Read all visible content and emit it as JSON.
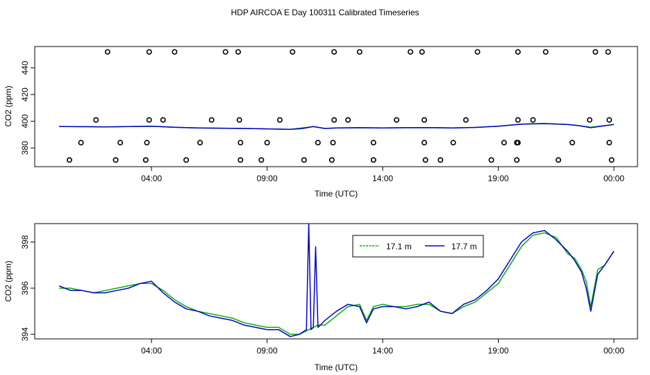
{
  "title": "HDP AIRCOA E  Day 100311  Calibrated Timeseries",
  "colors": {
    "green": "#00b000",
    "blue": "#0000cc",
    "black": "#000000"
  },
  "chart_data": [
    {
      "type": "scatter",
      "xlabel": "Time (UTC)",
      "ylabel": "CO2 (ppm)",
      "x_units": "hours since 00:00 UTC (axis runs ~00:00 to 00:00 next day)",
      "xlim": [
        0,
        24
      ],
      "ylim": [
        366,
        456
      ],
      "x_tick_labels": [
        "04:00",
        "09:00",
        "14:00",
        "19:00",
        "00:00"
      ],
      "x_tick_values": [
        4,
        9,
        14,
        19,
        24
      ],
      "y_tick_values": [
        380,
        400,
        420,
        440
      ],
      "y_tick_labels": [
        "380",
        "400",
        "420",
        "440"
      ],
      "points": {
        "x": [
          2.1,
          3.9,
          5.0,
          7.2,
          7.75,
          10.1,
          11.9,
          13.0,
          15.2,
          15.7,
          18.1,
          19.85,
          21.05,
          23.2,
          23.75,
          1.6,
          3.9,
          4.5,
          6.6,
          7.8,
          9.55,
          11.9,
          12.5,
          14.6,
          15.8,
          17.6,
          19.85,
          20.5,
          22.95,
          23.8,
          0.95,
          2.65,
          3.8,
          6.1,
          7.85,
          9.0,
          11.2,
          11.85,
          13.6,
          15.8,
          17.05,
          19.25,
          19.85,
          19.8,
          22.2,
          23.8,
          0.45,
          2.45,
          3.75,
          5.5,
          7.85,
          8.75,
          10.6,
          11.8,
          13.6,
          15.85,
          16.5,
          18.7,
          19.8,
          21.6,
          23.9
        ],
        "y": [
          452,
          452,
          452,
          452,
          452,
          452,
          452,
          452,
          452,
          452,
          452,
          452,
          452,
          452,
          452,
          401,
          401,
          401,
          401,
          401,
          401,
          401,
          401,
          401,
          401,
          401,
          401,
          401,
          401,
          401,
          384,
          384,
          384,
          384,
          384,
          384,
          384,
          384,
          384,
          384,
          384,
          384,
          384,
          384,
          384,
          384,
          371,
          371,
          371,
          371,
          371,
          371,
          371,
          371,
          371,
          371,
          371,
          371,
          371,
          371,
          371
        ]
      },
      "series": [
        {
          "name": "17.1 m",
          "x": [
            0,
            1,
            2,
            3,
            4,
            5,
            6,
            7,
            8,
            9,
            10,
            10.5,
            11,
            11.5,
            12,
            13,
            14,
            15,
            16,
            17,
            18,
            19,
            20,
            21,
            22,
            22.5,
            23,
            24
          ],
          "values": [
            396,
            396,
            395.8,
            396,
            396.2,
            395.5,
            395,
            394.8,
            394.6,
            394.3,
            394,
            395,
            396,
            394.6,
            395,
            395.2,
            395,
            395.2,
            395.3,
            395,
            395.4,
            396.3,
            397.8,
            398.2,
            397.6,
            396.7,
            395.5,
            397.6
          ]
        },
        {
          "name": "17.7 m",
          "x": [
            0,
            1,
            2,
            3,
            4,
            5,
            6,
            7,
            8,
            9,
            10,
            10.5,
            11,
            11.5,
            12,
            13,
            14,
            15,
            16,
            17,
            18,
            19,
            20,
            21,
            22,
            22.5,
            23,
            24
          ],
          "values": [
            396.1,
            395.9,
            395.8,
            396,
            396.3,
            395.5,
            395,
            394.8,
            394.6,
            394.3,
            394,
            394.5,
            396,
            394.6,
            395,
            395.2,
            395,
            395.2,
            395.3,
            395,
            395.4,
            396.3,
            397.9,
            398.3,
            397.6,
            396.7,
            395.2,
            397.6
          ]
        }
      ]
    },
    {
      "type": "line",
      "xlabel": "Time (UTC)",
      "ylabel": "CO2 (ppm)",
      "x_units": "hours since 00:00 UTC (axis runs ~00:00 to 00:00 next day)",
      "xlim": [
        0,
        24
      ],
      "ylim": [
        393.8,
        398.8
      ],
      "x_tick_labels": [
        "04:00",
        "09:00",
        "14:00",
        "19:00",
        "00:00"
      ],
      "x_tick_values": [
        4,
        9,
        14,
        19,
        24
      ],
      "y_tick_values": [
        394,
        396,
        398
      ],
      "y_tick_labels": [
        "394",
        "396",
        "398"
      ],
      "legend": {
        "placement": "top-right",
        "entries": [
          "17.1 m",
          "17.7 m"
        ]
      },
      "series": [
        {
          "name": "17.1 m",
          "color": "#00b000",
          "x": [
            0,
            0.5,
            1.0,
            1.5,
            2.0,
            2.5,
            3.0,
            3.5,
            4.0,
            4.5,
            5.0,
            5.5,
            6.0,
            6.5,
            7.0,
            7.5,
            8.0,
            8.5,
            9.0,
            9.5,
            10.0,
            10.4,
            10.8,
            11.0,
            11.2,
            11.5,
            12.0,
            12.5,
            13.0,
            13.3,
            13.6,
            14.0,
            14.5,
            15.0,
            15.5,
            16.0,
            16.5,
            17.0,
            17.5,
            18.0,
            18.5,
            19.0,
            19.5,
            20.0,
            20.5,
            21.0,
            21.5,
            22.0,
            22.3,
            22.6,
            22.8,
            23.0,
            23.3,
            23.6,
            24.0
          ],
          "values": [
            396.0,
            396.0,
            395.9,
            395.8,
            395.9,
            396.0,
            396.1,
            396.2,
            396.2,
            395.9,
            395.5,
            395.2,
            395.0,
            394.9,
            394.8,
            394.7,
            394.5,
            394.4,
            394.3,
            394.3,
            394.0,
            394.0,
            394.2,
            394.3,
            394.4,
            394.4,
            394.8,
            395.2,
            395.3,
            394.6,
            395.2,
            395.3,
            395.2,
            395.2,
            395.3,
            395.3,
            395.0,
            394.9,
            395.2,
            395.4,
            395.8,
            396.2,
            397.0,
            397.8,
            398.3,
            398.4,
            398.2,
            397.5,
            397.3,
            396.8,
            396.3,
            395.2,
            396.8,
            397.0,
            397.6
          ]
        },
        {
          "name": "17.7 m",
          "color": "#0000cc",
          "x": [
            0,
            0.5,
            1.0,
            1.5,
            2.0,
            2.5,
            3.0,
            3.5,
            4.0,
            4.5,
            5.0,
            5.5,
            6.0,
            6.5,
            7.0,
            7.5,
            8.0,
            8.5,
            9.0,
            9.5,
            10.0,
            10.4,
            10.7,
            10.8,
            10.9,
            11.0,
            11.1,
            11.2,
            11.3,
            11.5,
            12.0,
            12.5,
            13.0,
            13.3,
            13.6,
            14.0,
            14.5,
            15.0,
            15.5,
            16.0,
            16.5,
            17.0,
            17.5,
            18.0,
            18.5,
            19.0,
            19.5,
            20.0,
            20.5,
            21.0,
            21.5,
            22.0,
            22.3,
            22.6,
            22.8,
            23.0,
            23.3,
            23.6,
            24.0
          ],
          "values": [
            396.1,
            395.9,
            395.9,
            395.8,
            395.8,
            395.9,
            396.0,
            396.2,
            396.3,
            395.8,
            395.4,
            395.1,
            395.0,
            394.8,
            394.7,
            394.6,
            394.4,
            394.3,
            394.2,
            394.2,
            393.9,
            394.0,
            394.2,
            398.8,
            394.2,
            394.3,
            397.8,
            394.3,
            394.4,
            394.6,
            395.0,
            395.3,
            395.2,
            394.5,
            395.1,
            395.2,
            395.2,
            395.1,
            395.2,
            395.4,
            395.0,
            394.9,
            395.3,
            395.5,
            395.9,
            396.4,
            397.2,
            398.0,
            398.4,
            398.5,
            398.1,
            397.6,
            397.2,
            396.7,
            396.0,
            395.0,
            396.6,
            397.0,
            397.6
          ]
        }
      ]
    }
  ]
}
